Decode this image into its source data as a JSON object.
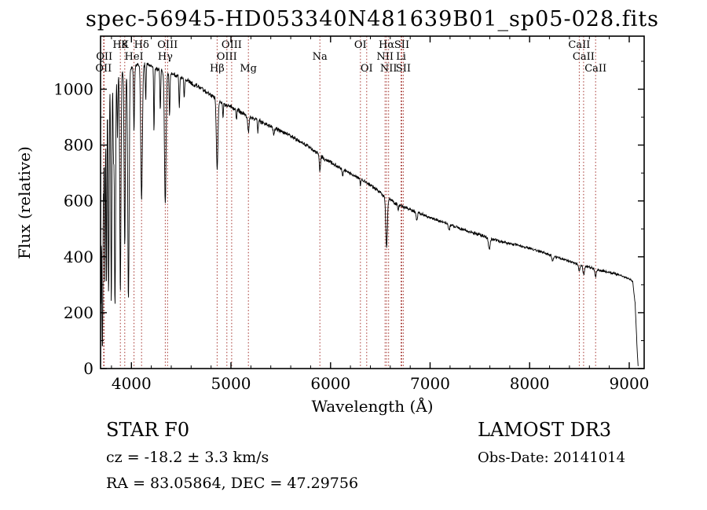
{
  "figure": {
    "title": "spec-56945-HD053340N481639B01_sp05-028.fits",
    "footer": {
      "class_line": "STAR    F0",
      "cz_line": "cz = -18.2 ± 3.3 km/s",
      "radec_line": "RA =  83.05864, DEC =  47.29756",
      "survey": "LAMOST DR3",
      "obs_date": "Obs-Date: 20141014"
    }
  },
  "chart_data": {
    "type": "line",
    "title": "spec-56945-HD053340N481639B01_sp05-028.fits",
    "xlabel": "Wavelength (Å)",
    "ylabel": "Flux (relative)",
    "xlim": [
      3690,
      9150
    ],
    "ylim": [
      0,
      1190
    ],
    "x_ticks": [
      4000,
      5000,
      6000,
      7000,
      8000,
      9000
    ],
    "y_ticks": [
      0,
      200,
      400,
      600,
      800,
      1000
    ],
    "grid": false,
    "legend": "none",
    "line_color": "#000000",
    "marker_color": "#a3312b",
    "label_color": "#1a1a1a",
    "wl_start": 3692,
    "wl_end": 9090,
    "sample_step": 3,
    "noise_base": 3.5,
    "noise_scale": 0.007,
    "continuum_points": [
      [
        3690,
        700
      ],
      [
        3720,
        980
      ],
      [
        3750,
        1010
      ],
      [
        3800,
        1030
      ],
      [
        3850,
        1050
      ],
      [
        3950,
        1070
      ],
      [
        4050,
        1085
      ],
      [
        4150,
        1090
      ],
      [
        4250,
        1075
      ],
      [
        4350,
        1060
      ],
      [
        4450,
        1048
      ],
      [
        4550,
        1032
      ],
      [
        4650,
        1012
      ],
      [
        4750,
        992
      ],
      [
        4850,
        968
      ],
      [
        4950,
        945
      ],
      [
        5050,
        928
      ],
      [
        5150,
        908
      ],
      [
        5250,
        892
      ],
      [
        5350,
        875
      ],
      [
        5450,
        858
      ],
      [
        5550,
        842
      ],
      [
        5650,
        822
      ],
      [
        5750,
        800
      ],
      [
        5850,
        775
      ],
      [
        5950,
        748
      ],
      [
        6050,
        728
      ],
      [
        6150,
        708
      ],
      [
        6250,
        688
      ],
      [
        6350,
        668
      ],
      [
        6450,
        645
      ],
      [
        6550,
        615
      ],
      [
        6650,
        592
      ],
      [
        6750,
        576
      ],
      [
        6850,
        562
      ],
      [
        6950,
        548
      ],
      [
        7100,
        528
      ],
      [
        7300,
        502
      ],
      [
        7500,
        478
      ],
      [
        7700,
        456
      ],
      [
        7900,
        440
      ],
      [
        8100,
        420
      ],
      [
        8300,
        396
      ],
      [
        8500,
        372
      ],
      [
        8700,
        352
      ],
      [
        8900,
        336
      ],
      [
        9000,
        322
      ],
      [
        9035,
        312
      ],
      [
        9060,
        230
      ],
      [
        9078,
        80
      ],
      [
        9090,
        2
      ]
    ],
    "absorption_lines": [
      [
        3694,
        520,
        3
      ],
      [
        3705,
        560,
        4
      ],
      [
        3712,
        620,
        4
      ],
      [
        3722,
        350,
        3
      ],
      [
        3734,
        680,
        4
      ],
      [
        3750,
        720,
        4
      ],
      [
        3771,
        760,
        5
      ],
      [
        3798,
        800,
        5
      ],
      [
        3820,
        260,
        4
      ],
      [
        3835,
        820,
        6
      ],
      [
        3860,
        220,
        4
      ],
      [
        3889,
        790,
        6
      ],
      [
        3933,
        630,
        6
      ],
      [
        3970,
        830,
        7
      ],
      [
        4026,
        230,
        5
      ],
      [
        4102,
        485,
        8
      ],
      [
        4144,
        130,
        4
      ],
      [
        4227,
        230,
        4
      ],
      [
        4290,
        150,
        4
      ],
      [
        4340,
        475,
        8
      ],
      [
        4383,
        160,
        4
      ],
      [
        4481,
        110,
        4
      ],
      [
        4530,
        70,
        4
      ],
      [
        4861,
        250,
        8
      ],
      [
        4920,
        60,
        4
      ],
      [
        5055,
        40,
        4
      ],
      [
        5175,
        60,
        7
      ],
      [
        5270,
        40,
        5
      ],
      [
        5430,
        30,
        5
      ],
      [
        5893,
        58,
        6
      ],
      [
        6122,
        25,
        5
      ],
      [
        6300,
        25,
        4
      ],
      [
        6563,
        178,
        8
      ],
      [
        6680,
        20,
        5
      ],
      [
        6867,
        30,
        7
      ],
      [
        7190,
        18,
        8
      ],
      [
        7594,
        40,
        9
      ],
      [
        8230,
        18,
        7
      ],
      [
        8498,
        25,
        6
      ],
      [
        8542,
        32,
        7
      ],
      [
        8662,
        28,
        7
      ]
    ],
    "spectral_line_markers": [
      {
        "label": "H8",
        "wavelength": 3889,
        "row": 0
      },
      {
        "label": "K",
        "wavelength": 3933,
        "row": 0
      },
      {
        "label": "Hδ",
        "wavelength": 4102,
        "row": 0
      },
      {
        "label": "OIII",
        "wavelength": 4363,
        "row": 0
      },
      {
        "label": "OII",
        "wavelength": 3727,
        "row": 1
      },
      {
        "label": "HeI",
        "wavelength": 4026,
        "row": 1
      },
      {
        "label": "Hγ",
        "wavelength": 4340,
        "row": 1
      },
      {
        "label": "OII",
        "wavelength": 3720,
        "row": 2
      },
      {
        "label": "OIII",
        "wavelength": 5007,
        "row": 0
      },
      {
        "label": "OIII",
        "wavelength": 4959,
        "row": 1
      },
      {
        "label": "Hβ",
        "wavelength": 4861,
        "row": 2
      },
      {
        "label": "Mg",
        "wavelength": 5175,
        "row": 2
      },
      {
        "label": "Na",
        "wavelength": 5893,
        "row": 1
      },
      {
        "label": "OI",
        "wavelength": 6300,
        "row": 0
      },
      {
        "label": "Hα",
        "wavelength": 6563,
        "row": 0
      },
      {
        "label": "SII",
        "wavelength": 6716,
        "row": 0
      },
      {
        "label": "NII",
        "wavelength": 6548,
        "row": 1
      },
      {
        "label": "Li",
        "wavelength": 6708,
        "row": 1
      },
      {
        "label": "OI",
        "wavelength": 6363,
        "row": 2
      },
      {
        "label": "NII",
        "wavelength": 6583,
        "row": 2
      },
      {
        "label": "SII",
        "wavelength": 6731,
        "row": 2
      },
      {
        "label": "CaII",
        "wavelength": 8498,
        "row": 0
      },
      {
        "label": "CaII",
        "wavelength": 8542,
        "row": 1
      },
      {
        "label": "CaII",
        "wavelength": 8662,
        "row": 2
      }
    ]
  }
}
